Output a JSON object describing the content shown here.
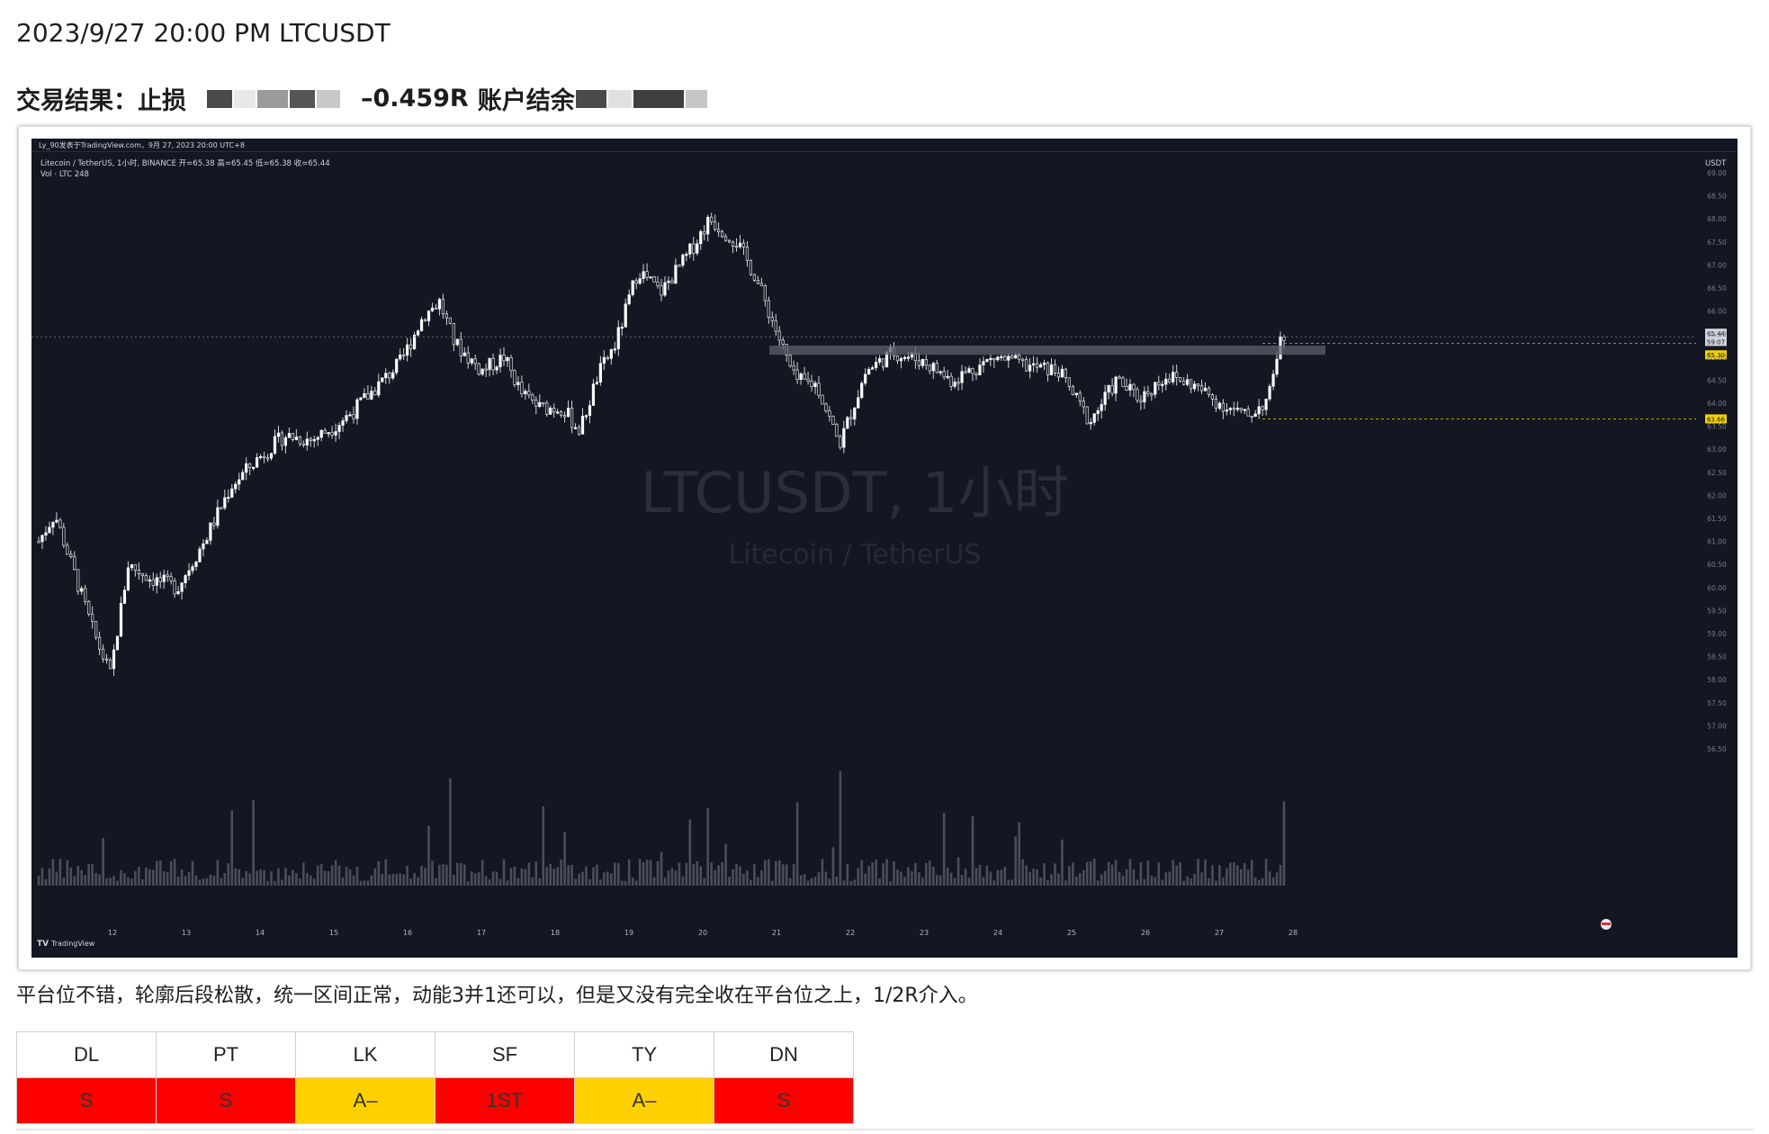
{
  "header": {
    "title": "2023/9/27 20:00 PM LTCUSDT",
    "result_label": "交易结果：止损",
    "r_value": "–0.459R",
    "balance_label": "账户结余"
  },
  "chart": {
    "watermark_title": "LTCUSDT, 1小时",
    "watermark_subtitle": "Litecoin / TetherUS",
    "author_line": "Ly_90发表于TradingView.com，9月 27, 2023 20:00 UTC+8",
    "symbol_line": "Litecoin / TetherUS, 1小时, BINANCE  开=65.38  高=65.45  低=65.38  收=65.44",
    "volume_line": "Vol · LTC  248",
    "currency": "USDT",
    "tv_logo": "TradingView",
    "price_ticks": [
      "69.00",
      "68.50",
      "68.00",
      "67.50",
      "67.00",
      "66.50",
      "66.00",
      "65.50",
      "65.00",
      "64.50",
      "64.00",
      "63.50",
      "63.00",
      "62.50",
      "62.00",
      "61.50",
      "61.00",
      "60.50",
      "60.00",
      "59.50",
      "59.00",
      "58.50",
      "58.00",
      "57.50",
      "57.00",
      "56.50"
    ],
    "date_ticks": [
      "12",
      "13",
      "14",
      "15",
      "16",
      "17",
      "18",
      "19",
      "20",
      "21",
      "22",
      "23",
      "24",
      "25",
      "26",
      "27",
      "28"
    ],
    "price_labels": {
      "last": "65.44",
      "last2": "59:07",
      "entry": "65.30",
      "stop": "63.66"
    },
    "colors": {
      "background": "#131722",
      "candle": "#ffffff",
      "entry_tag": "#f4d000",
      "stop_tag": "#f4d000"
    }
  },
  "comment": "平台位不错，轮廓后段松散，统一区间正常，动能3并1还可以，但是又没有完全收在平台位之上，1/2R介入。",
  "scores": {
    "headers": [
      "DL",
      "PT",
      "LK",
      "SF",
      "TY",
      "DN"
    ],
    "values": [
      "S",
      "S",
      "A–",
      "1ST",
      "A–",
      "S"
    ],
    "colors": [
      "#ff0000",
      "#ff0000",
      "#ffd000",
      "#ff0000",
      "#ffd000",
      "#ff0000"
    ]
  }
}
